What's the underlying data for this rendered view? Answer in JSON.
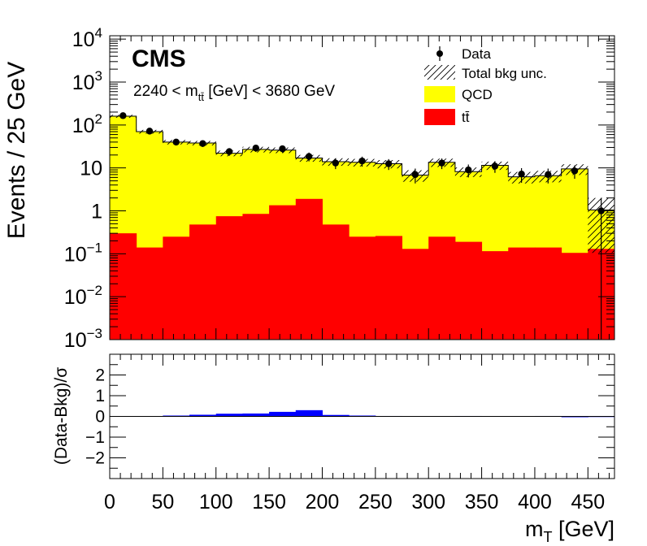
{
  "chart_data": [
    {
      "type": "histogram",
      "yscale": "log",
      "ylabel": "Events / 25 GeV",
      "ylim": [
        0.001,
        12000
      ],
      "xlim": [
        0,
        475
      ],
      "bin_width": 25,
      "bin_edges": [
        0,
        25,
        50,
        75,
        100,
        125,
        150,
        175,
        200,
        225,
        250,
        275,
        300,
        325,
        350,
        375,
        400,
        425,
        450,
        475
      ],
      "experiment_label": "CMS",
      "selection_label": {
        "prefix": "2240 < m",
        "subscript": "tt̄",
        "suffix": " [GeV] < 3680 GeV"
      },
      "legend": {
        "placement": "top-right",
        "entries": [
          {
            "key": "data",
            "label": "Data"
          },
          {
            "key": "unc",
            "label": "Total bkg unc."
          },
          {
            "key": "qcd",
            "label": "QCD"
          },
          {
            "key": "ttbar",
            "label": "tt̄"
          }
        ]
      },
      "colors": {
        "qcd": "#ffff00",
        "ttbar": "#ff0000",
        "data": "#000000",
        "ratio": "#0000ff"
      },
      "series": [
        {
          "name": "QCD",
          "stacked_total": [
            160,
            70,
            40,
            38,
            22,
            27,
            26,
            17,
            14,
            13.5,
            12.5,
            6.8,
            13.5,
            8.2,
            11.5,
            6.2,
            6.6,
            9.5,
            1.05
          ]
        },
        {
          "name": "tt̄",
          "values": [
            0.3,
            0.14,
            0.25,
            0.48,
            0.75,
            0.85,
            1.35,
            1.9,
            0.48,
            0.25,
            0.26,
            0.13,
            0.25,
            0.19,
            0.115,
            0.14,
            0.14,
            0.105,
            0.13
          ]
        },
        {
          "name": "Data",
          "x": [
            12.5,
            37.5,
            62.5,
            87.5,
            112.5,
            137.5,
            162.5,
            187.5,
            212.5,
            237.5,
            262.5,
            287.5,
            312.5,
            337.5,
            362.5,
            387.5,
            412.5,
            437.5,
            462.5
          ],
          "values": [
            165,
            72,
            40,
            37,
            24,
            29,
            28,
            18.5,
            13,
            14.5,
            12.5,
            7,
            13,
            9,
            11,
            7.2,
            7,
            8.5,
            1
          ]
        }
      ],
      "unc_rel": [
        0.08,
        0.1,
        0.12,
        0.12,
        0.15,
        0.15,
        0.15,
        0.18,
        0.2,
        0.2,
        0.22,
        0.3,
        0.22,
        0.25,
        0.22,
        0.3,
        0.3,
        0.28,
        0.9
      ],
      "ytick_labels": [
        {
          "value": 0.001,
          "base": "10",
          "exp": "−3"
        },
        {
          "value": 0.01,
          "base": "10",
          "exp": "−2"
        },
        {
          "value": 0.1,
          "base": "10",
          "exp": "−1"
        },
        {
          "value": 1,
          "base": "1",
          "exp": ""
        },
        {
          "value": 10,
          "base": "10",
          "exp": ""
        },
        {
          "value": 100,
          "base": "10",
          "exp": "2"
        },
        {
          "value": 1000,
          "base": "10",
          "exp": "3"
        },
        {
          "value": 10000,
          "base": "10",
          "exp": "4"
        }
      ]
    },
    {
      "type": "bar",
      "ylabel": "(Data-Bkg)/σ",
      "ylim": [
        -3,
        3
      ],
      "ytick_labels": [
        {
          "value": -2,
          "label": "−2"
        },
        {
          "value": -1,
          "label": "−1"
        },
        {
          "value": 0,
          "label": "0"
        },
        {
          "value": 1,
          "label": "1"
        },
        {
          "value": 2,
          "label": "2"
        }
      ],
      "xlabel": {
        "main": "m",
        "subscript": "T",
        "unit": " [GeV]"
      },
      "xtick_labels": [
        0,
        50,
        100,
        150,
        200,
        250,
        300,
        350,
        400,
        450
      ],
      "xlim": [
        0,
        475
      ],
      "values": [
        0.01,
        0.01,
        0.04,
        0.08,
        0.13,
        0.14,
        0.22,
        0.3,
        0.07,
        0.04,
        0.02,
        0.01,
        0.01,
        0.02,
        0.01,
        0.01,
        0.02,
        -0.04,
        -0.03
      ]
    }
  ]
}
